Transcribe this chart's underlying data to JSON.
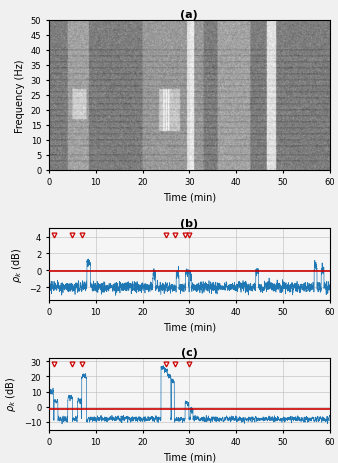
{
  "title_a": "(a)",
  "title_b": "(b)",
  "title_c": "(c)",
  "xlim": [
    0,
    60
  ],
  "spectrogram_ylim": [
    0,
    50
  ],
  "plot_b_ylim": [
    -3.5,
    5.0
  ],
  "plot_b_yticks": [
    -2,
    0,
    2,
    4
  ],
  "plot_c_ylim": [
    -15,
    32
  ],
  "plot_c_yticks": [
    -10,
    0,
    10,
    20,
    30
  ],
  "xlabel": "Time (min)",
  "ylabel_a": "Frequency (Hz)",
  "xticks": [
    0,
    10,
    20,
    30,
    40,
    50,
    60
  ],
  "red_line_b": -0.1,
  "red_line_c": -1.5,
  "marker_b_x": [
    1,
    5,
    7,
    25,
    27,
    29,
    30
  ],
  "marker_b_y": [
    4.2,
    4.2,
    4.2,
    4.2,
    4.2,
    4.2,
    4.2
  ],
  "marker_c_x": [
    1,
    5,
    7,
    25,
    27,
    30
  ],
  "marker_c_y": [
    28.5,
    28.5,
    28.5,
    28.5,
    28.5,
    28.5
  ],
  "line_color": "#1f77b4",
  "marker_color": "#cc0000",
  "red_line_color": "#cc0000",
  "grid_color": "#bbbbbb",
  "bg_color": "#f5f5f5",
  "spec_base": 0.72,
  "spec_noise": 0.06
}
